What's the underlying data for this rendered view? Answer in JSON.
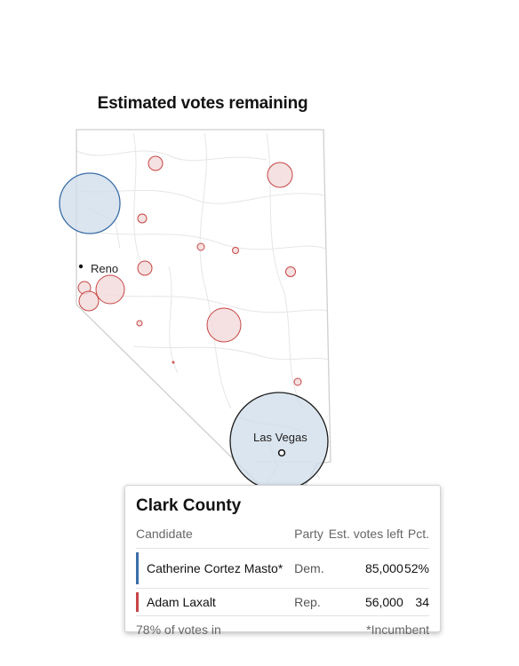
{
  "map": {
    "title": "Estimated votes remaining",
    "cities": [
      {
        "name": "Reno"
      },
      {
        "name": "Las Vegas"
      }
    ],
    "colors": {
      "democrat_fill": "#cfdce9",
      "democrat_stroke": "#3a6ea8",
      "republican_fill": "#f2d9d9",
      "republican_stroke": "#c84545",
      "border": "#cfcfcf",
      "road": "#e6e6e6"
    }
  },
  "tooltip": {
    "county": "Clark County",
    "headers": {
      "candidate": "Candidate",
      "party": "Party",
      "votes": "Est. votes left",
      "pct": "Pct."
    },
    "rows": [
      {
        "name": "Catherine Cortez Masto*",
        "party": "Dem.",
        "votes": "85,000",
        "pct": "52%",
        "color": "#3a6ea8"
      },
      {
        "name": "Adam Laxalt",
        "party": "Rep.",
        "votes": "56,000",
        "pct": "34",
        "color": "#c84545"
      }
    ],
    "reporting": "78% of votes in",
    "note": "*Incumbent"
  }
}
